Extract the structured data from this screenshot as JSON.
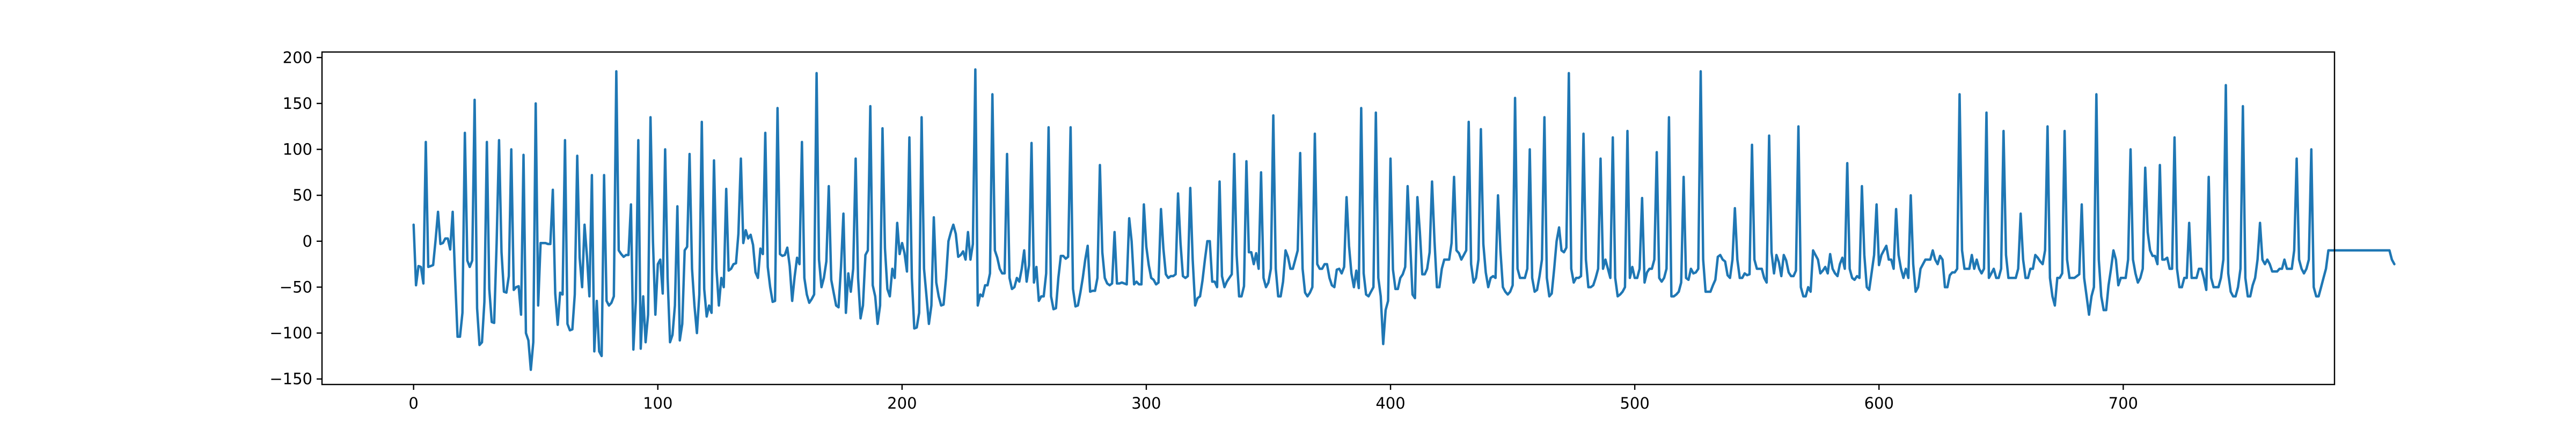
{
  "chart_data": {
    "type": "line",
    "title": "",
    "xlabel": "",
    "ylabel": "",
    "xlim": [
      -37.5,
      786.5
    ],
    "ylim": [
      -156,
      206
    ],
    "xticks": [
      0,
      100,
      200,
      300,
      400,
      500,
      600,
      700
    ],
    "yticks": [
      -150,
      -100,
      -50,
      0,
      50,
      100,
      150,
      200
    ],
    "grid": false,
    "legend": "none",
    "colors": {
      "series": "#1f77b4",
      "axes": "#000000",
      "background": "#ffffff"
    },
    "series": [
      {
        "x_start": 0,
        "x_step": 1,
        "y": [
          18,
          -48,
          -27,
          -28,
          -46,
          108,
          -28,
          -27,
          -26,
          1,
          32,
          -3,
          -2,
          3,
          3,
          -9,
          32,
          -39,
          -104,
          -104,
          -78,
          118,
          -21,
          -28,
          -21,
          154,
          -73,
          -113,
          -110,
          -66,
          108,
          -52,
          -88,
          -89,
          -2,
          110,
          -12,
          -55,
          -56,
          -38,
          100,
          -53,
          -50,
          -49,
          -80,
          94,
          -100,
          -108,
          -140,
          -110,
          150,
          -70,
          -2,
          -2,
          -2,
          -3,
          -3,
          56,
          -57,
          -91,
          -56,
          -58,
          110,
          -90,
          -97,
          -96,
          -58,
          93,
          -18,
          -50,
          18,
          -17,
          -60,
          72,
          -120,
          -65,
          -120,
          -125,
          72,
          -65,
          -70,
          -67,
          -60,
          185,
          -10,
          -14,
          -17,
          -15,
          -15,
          40,
          -118,
          -65,
          110,
          -117,
          -60,
          -110,
          -80,
          135,
          0,
          -80,
          -25,
          -20,
          -57,
          100,
          -40,
          -110,
          -102,
          -70,
          38,
          -108,
          -90,
          -10,
          -6,
          95,
          -30,
          -70,
          -100,
          -58,
          130,
          -52,
          -82,
          -70,
          -78,
          88,
          -30,
          -70,
          -40,
          -50,
          57,
          -32,
          -30,
          -25,
          -24,
          8,
          90,
          -2,
          12,
          3,
          7,
          -4,
          -34,
          -40,
          -8,
          -14,
          118,
          -28,
          -50,
          -66,
          -65,
          145,
          -14,
          -16,
          -15,
          -7,
          -27,
          -65,
          -39,
          -18,
          -25,
          108,
          -40,
          -58,
          -67,
          -63,
          -58,
          183,
          -20,
          -50,
          -40,
          -22,
          60,
          -42,
          -56,
          -70,
          -72,
          -28,
          30,
          -78,
          -35,
          -55,
          -30,
          90,
          -40,
          -84,
          -70,
          -15,
          -10,
          147,
          -48,
          -60,
          -90,
          -70,
          123,
          -8,
          -52,
          -60,
          -30,
          -40,
          20,
          -14,
          -2,
          -13,
          -33,
          113,
          -40,
          -95,
          -94,
          -78,
          135,
          -30,
          -60,
          -90,
          -70,
          26,
          -45,
          -60,
          -70,
          -69,
          -40,
          0,
          10,
          18,
          8,
          -17,
          -15,
          -11,
          -20,
          10,
          -20,
          -3,
          187,
          -70,
          -58,
          -60,
          -48,
          -48,
          -35,
          160,
          -10,
          -18,
          -30,
          -35,
          -35,
          95,
          -40,
          -52,
          -50,
          -40,
          -44,
          -30,
          -10,
          -44,
          -26,
          107,
          -45,
          -28,
          -65,
          -60,
          -60,
          -35,
          124,
          -60,
          -74,
          -73,
          -40,
          -16,
          -16,
          -19,
          -17,
          124,
          -52,
          -71,
          -70,
          -56,
          -40,
          -20,
          -5,
          -55,
          -54,
          -54,
          -40,
          83,
          -12,
          -40,
          -46,
          -48,
          -46,
          10,
          -46,
          -46,
          -45,
          -46,
          -47,
          25,
          0,
          -47,
          -44,
          -47,
          -47,
          40,
          -6,
          -26,
          -40,
          -42,
          -47,
          -45,
          35,
          -8,
          -36,
          -40,
          -38,
          -38,
          -36,
          52,
          -2,
          -38,
          -40,
          -38,
          58,
          -20,
          -70,
          -62,
          -60,
          -43,
          -20,
          0,
          0,
          -44,
          -44,
          -50,
          65,
          -38,
          -50,
          -44,
          -40,
          -36,
          95,
          -15,
          -60,
          -60,
          -49,
          87,
          -12,
          -12,
          -25,
          -13,
          -30,
          75,
          -40,
          -50,
          -45,
          -30,
          137,
          -30,
          -60,
          -60,
          -44,
          -10,
          -17,
          -30,
          -30,
          -20,
          -10,
          96,
          -30,
          -56,
          -60,
          -56,
          -50,
          117,
          -25,
          -30,
          -30,
          -25,
          -25,
          -40,
          -48,
          -50,
          -31,
          -30,
          -35,
          -28,
          48,
          -5,
          -35,
          -50,
          -32,
          -51,
          145,
          -35,
          -58,
          -60,
          -55,
          -50,
          140,
          -40,
          -60,
          -112,
          -75,
          -65,
          90,
          -31,
          -52,
          -52,
          -40,
          -36,
          -28,
          60,
          0,
          -58,
          -62,
          48,
          10,
          -36,
          -36,
          -30,
          -12,
          65,
          0,
          -50,
          -50,
          -30,
          -20,
          -20,
          -20,
          -2,
          70,
          -10,
          -13,
          -20,
          -15,
          -10,
          130,
          -25,
          -45,
          -40,
          -20,
          122,
          -3,
          -34,
          -50,
          -40,
          -38,
          -40,
          50,
          -10,
          -50,
          -55,
          -58,
          -55,
          -48,
          156,
          -30,
          -40,
          -40,
          -40,
          -30,
          100,
          -40,
          -55,
          -53,
          -38,
          -20,
          135,
          -40,
          -60,
          -57,
          -30,
          0,
          15,
          -10,
          -12,
          -7,
          183,
          -30,
          -45,
          -40,
          -40,
          -38,
          117,
          -20,
          -50,
          -50,
          -48,
          -40,
          -30,
          90,
          -30,
          -20,
          -30,
          -40,
          113,
          -40,
          -60,
          -58,
          -55,
          -50,
          120,
          -40,
          -28,
          -40,
          -40,
          -30,
          47,
          -45,
          -34,
          -30,
          -30,
          -20,
          97,
          -40,
          -44,
          -40,
          -30,
          135,
          -60,
          -60,
          -58,
          -55,
          -45,
          70,
          -40,
          -42,
          -30,
          -35,
          -34,
          -30,
          185,
          -20,
          -55,
          -55,
          -55,
          -48,
          -42,
          -17,
          -15,
          -20,
          -22,
          -37,
          -40,
          -20,
          36,
          -20,
          -40,
          -40,
          -35,
          -37,
          -36,
          105,
          -20,
          -30,
          -30,
          -30,
          -40,
          -45,
          115,
          -12,
          -35,
          -15,
          -23,
          -38,
          -15,
          -21,
          -34,
          -38,
          -38,
          -32,
          125,
          -50,
          -60,
          -60,
          -50,
          -55,
          -10,
          -15,
          -20,
          -35,
          -32,
          -28,
          -35,
          -14,
          -30,
          -35,
          -38,
          -25,
          -18,
          -30,
          85,
          -30,
          -40,
          -42,
          -38,
          -40,
          60,
          -15,
          -50,
          -53,
          -34,
          -15,
          40,
          -26,
          -15,
          -10,
          -5,
          -20,
          -20,
          -30,
          35,
          -15,
          -30,
          -40,
          -30,
          -40,
          50,
          -25,
          -55,
          -50,
          -30,
          -25,
          -20,
          -20,
          -20,
          -10,
          -20,
          -25,
          -16,
          -20,
          -50,
          -50,
          -37,
          -34,
          -34,
          -30,
          160,
          -10,
          -30,
          -30,
          -30,
          -15,
          -30,
          -20,
          -30,
          -35,
          -30,
          140,
          -40,
          -35,
          -30,
          -40,
          -40,
          -30,
          120,
          -15,
          -40,
          -40,
          -40,
          -40,
          -30,
          30,
          -20,
          -40,
          -40,
          -30,
          -30,
          -15,
          -18,
          -22,
          -25,
          -10,
          125,
          -40,
          -60,
          -70,
          -40,
          -40,
          -35,
          120,
          -20,
          -40,
          -40,
          -40,
          -38,
          -36,
          40,
          -40,
          -60,
          -80,
          -60,
          -50,
          160,
          -20,
          -60,
          -75,
          -75,
          -48,
          -30,
          -10,
          -20,
          -48,
          -40,
          -40,
          -40,
          -20,
          100,
          -20,
          -35,
          -45,
          -40,
          -30,
          80,
          10,
          -10,
          -16,
          -16,
          -25,
          83,
          -20,
          -20,
          -18,
          -30,
          -30,
          113,
          -30,
          -50,
          -50,
          -40,
          -40,
          20,
          -40,
          -40,
          -40,
          -30,
          -30,
          -40,
          -53,
          70,
          -40,
          -50,
          -50,
          -50,
          -40,
          -20,
          170,
          -35,
          -55,
          -60,
          -60,
          -50,
          -30,
          147,
          -40,
          -60,
          -60,
          -48,
          -40,
          -20,
          20,
          -20,
          -25,
          -20,
          -25,
          -33,
          -33,
          -33,
          -30,
          -30,
          -20,
          -30,
          -30,
          -30,
          -10,
          90,
          -20,
          -30,
          -35,
          -30,
          -20,
          100,
          -50,
          -60,
          -60,
          -50,
          -40,
          -30,
          -10,
          -10,
          -10,
          -10,
          -10,
          -10,
          -10,
          -10,
          -10,
          -10,
          -10,
          -10,
          -10,
          -10,
          -10,
          -10,
          -10,
          -10,
          -10,
          -10,
          -10,
          -10,
          -10,
          -10,
          -10,
          -10,
          -20,
          -25
        ]
      }
    ]
  }
}
